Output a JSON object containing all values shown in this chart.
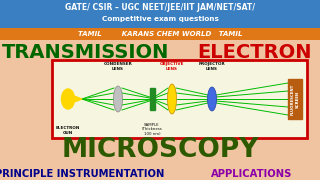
{
  "bg_color": "#f0c4a0",
  "top_bar_color": "#3a7fc1",
  "orange_bar_color": "#e07818",
  "top_text1": "GATE/ CSIR – UGC NEET/JEE/IIT JAM/NET/SAT/",
  "top_text2": "Competitive exam questions",
  "orange_text": "TAMIL        KARANS CHEM WORLD   TAMIL",
  "title_left": "TRANSMISSION",
  "title_right": "ELECTRON",
  "title_left_color": "#006600",
  "title_right_color": "#cc0000",
  "subtitle": "MICROSCOPY",
  "subtitle_color": "#2d5a00",
  "bottom_text1": "PRINCIPLE INSTRUMENTATION",
  "bottom_text2": "APPLICATIONS",
  "bottom_text1_color": "#00008b",
  "bottom_text2_color": "#8b00aa",
  "diagram_bg": "#f5f5e0",
  "diagram_border": "#cc0000",
  "electron_gun_color": "#ffd700",
  "condenser_lens_color": "#c0c0c0",
  "objective_lens_color": "#ffd700",
  "projector_lens_color": "#4169e1",
  "sample_color": "#228b22",
  "fluorescent_color": "#b85c10",
  "beam_color": "#00bb00",
  "label_color_normal": "#111111",
  "label_color_obj": "#dd0000"
}
